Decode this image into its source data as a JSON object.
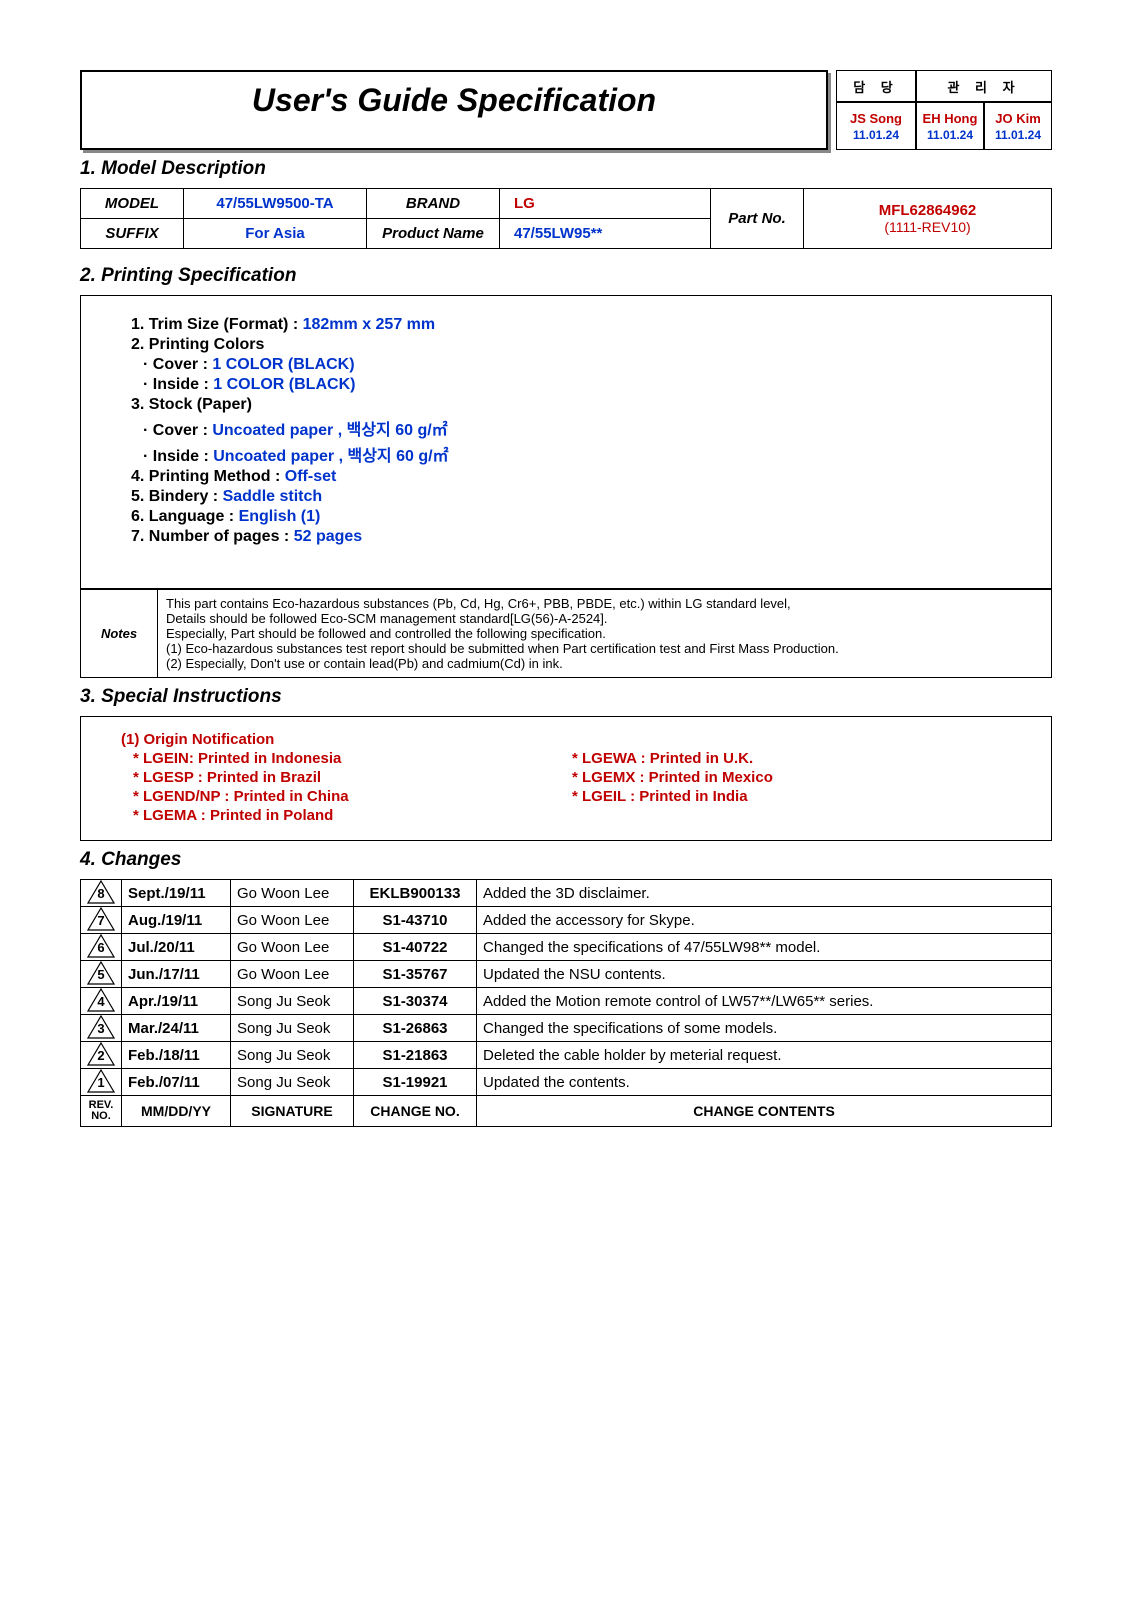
{
  "title": "User's Guide Specification",
  "sig": {
    "col1_head": "담  당",
    "col2_head": "관 리 자",
    "p1_name": "JS Song",
    "p1_date": "11.01.24",
    "p2_name": "EH Hong",
    "p2_date": "11.01.24",
    "p3_name": "JO Kim",
    "p3_date": "11.01.24"
  },
  "sig_layout": {
    "col1_w": 80,
    "col2_w": 68,
    "col3_w": 68
  },
  "s1": {
    "heading": "1. Model Description",
    "model_lbl": "MODEL",
    "model_val": "47/55LW9500-TA",
    "brand_lbl": "BRAND",
    "brand_val": "LG",
    "suffix_lbl": "SUFFIX",
    "suffix_val": "For Asia",
    "prod_lbl": "Product Name",
    "prod_val": "47/55LW95**",
    "part_lbl": "Part No.",
    "part_val": "MFL62864962",
    "part_rev": "(1111-REV10)"
  },
  "s2": {
    "heading": "2.    Printing Specification",
    "l1a": "1. Trim Size (Format) : ",
    "l1b": "182mm x 257 mm",
    "l2": "2. Printing Colors",
    "l2c": "· Cover : ",
    "l2cv": "1 COLOR (BLACK)",
    "l2i": "· Inside : ",
    "l2iv": "1 COLOR (BLACK)",
    "l3": "3. Stock (Paper)",
    "l3c": "· Cover : ",
    "l3cv": "Uncoated paper , 백상지 60 g/㎡",
    "l3i": "· Inside : ",
    "l3iv": "Uncoated paper , 백상지 60 g/㎡",
    "l4a": "4. Printing Method : ",
    "l4b": "Off-set",
    "l5a": "5. Bindery  : ",
    "l5b": "Saddle stitch",
    "l6a": "6. Language : ",
    "l6b": "English (1)",
    "l7a": "7. Number of pages : ",
    "l7b": "52 pages"
  },
  "notes": {
    "label": "Notes",
    "l1": "This part contains Eco-hazardous substances (Pb, Cd, Hg, Cr6+, PBB, PBDE, etc.) within LG standard level,",
    "l2": "Details should be followed Eco-SCM management standard[LG(56)-A-2524].",
    "l3": "Especially, Part should be followed and controlled the following specification.",
    "l4": "  (1) Eco-hazardous substances test report should be submitted when  Part certification test and First Mass Production.",
    "l5": "  (2) Especially, Don't use or contain lead(Pb) and cadmium(Cd) in ink."
  },
  "s3": {
    "heading": "3.    Special Instructions",
    "title": "(1) Origin Notification",
    "colA": [
      "* LGEIN: Printed in Indonesia",
      "* LGESP : Printed in Brazil",
      "* LGEND/NP : Printed in China",
      "* LGEMA : Printed in Poland"
    ],
    "colB": [
      "* LGEWA : Printed in U.K.",
      "* LGEMX : Printed in Mexico",
      "* LGEIL : Printed in India"
    ]
  },
  "s4": {
    "heading": "4.    Changes",
    "rows": [
      {
        "rev": "8",
        "date": "Sept./19/11",
        "sig": "Go Woon Lee",
        "code": "EKLB900133",
        "desc": "Added the 3D disclaimer."
      },
      {
        "rev": "7",
        "date": "Aug./19/11",
        "sig": "Go Woon Lee",
        "code": "S1-43710",
        "desc": "Added the accessory for Skype."
      },
      {
        "rev": "6",
        "date": "Jul./20/11",
        "sig": "Go Woon Lee",
        "code": "S1-40722",
        "desc": "Changed the specifications of 47/55LW98** model."
      },
      {
        "rev": "5",
        "date": "Jun./17/11",
        "sig": "Go Woon Lee",
        "code": "S1-35767",
        "desc": "Updated the NSU contents."
      },
      {
        "rev": "4",
        "date": "Apr./19/11",
        "sig": "Song Ju Seok",
        "code": "S1-30374",
        "desc": "Added the Motion remote control of LW57**/LW65** series."
      },
      {
        "rev": "3",
        "date": "Mar./24/11",
        "sig": "Song Ju Seok",
        "code": "S1-26863",
        "desc": "Changed the specifications of some models."
      },
      {
        "rev": "2",
        "date": "Feb./18/11",
        "sig": "Song Ju Seok",
        "code": "S1-21863",
        "desc": "Deleted the cable holder by meterial request."
      },
      {
        "rev": "1",
        "date": "Feb./07/11",
        "sig": "Song Ju Seok",
        "code": "S1-19921",
        "desc": "Updated the contents."
      }
    ],
    "footer": {
      "revno": "REV.\nNO.",
      "date": "MM/DD/YY",
      "sig": "SIGNATURE",
      "code": "CHANGE NO.",
      "desc": "CHANGE   CONTENTS"
    }
  }
}
